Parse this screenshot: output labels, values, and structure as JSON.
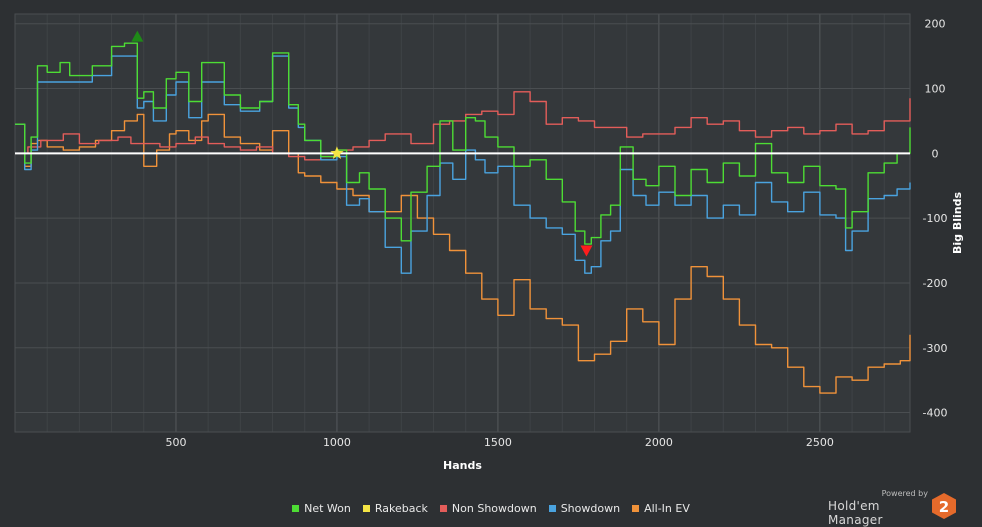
{
  "chart_data": {
    "type": "line",
    "xlabel": "Hands",
    "ylabel": "Big Blinds",
    "xlim": [
      0,
      2780
    ],
    "ylim": [
      -430,
      215
    ],
    "x_ticks": [
      "500",
      "1000",
      "1500",
      "2000",
      "2500"
    ],
    "y_ticks": [
      "200",
      "100",
      "0",
      "-100",
      "-200",
      "-300",
      "-400"
    ],
    "grid": true,
    "legend": "bottom",
    "series": [
      {
        "name": "Net Won",
        "color": "#4ddc34",
        "x": [
          0,
          30,
          50,
          70,
          100,
          140,
          170,
          200,
          240,
          300,
          340,
          380,
          400,
          430,
          470,
          500,
          540,
          580,
          600,
          650,
          700,
          760,
          800,
          850,
          880,
          900,
          950,
          1000,
          1030,
          1070,
          1100,
          1150,
          1200,
          1230,
          1280,
          1320,
          1360,
          1400,
          1430,
          1460,
          1500,
          1550,
          1600,
          1650,
          1700,
          1740,
          1770,
          1790,
          1820,
          1850,
          1880,
          1920,
          1960,
          2000,
          2050,
          2100,
          2150,
          2200,
          2250,
          2300,
          2350,
          2400,
          2450,
          2500,
          2550,
          2580,
          2600,
          2650,
          2700,
          2740,
          2780
        ],
        "y": [
          45,
          -15,
          25,
          135,
          125,
          140,
          120,
          120,
          135,
          165,
          170,
          85,
          95,
          70,
          115,
          125,
          80,
          140,
          140,
          90,
          70,
          80,
          155,
          75,
          45,
          20,
          -5,
          5,
          -45,
          -30,
          -55,
          -100,
          -135,
          -60,
          -20,
          50,
          5,
          55,
          50,
          25,
          10,
          -20,
          -10,
          -40,
          -75,
          -120,
          -140,
          -130,
          -95,
          -80,
          10,
          -40,
          -50,
          -20,
          -65,
          -25,
          -45,
          -15,
          -35,
          15,
          -30,
          -45,
          -20,
          -50,
          -55,
          -115,
          -90,
          -30,
          -15,
          0,
          40
        ]
      },
      {
        "name": "Rakeback",
        "color": "#f4e445",
        "x": [
          0,
          2780
        ],
        "y": [
          0,
          0
        ]
      },
      {
        "name": "Non Showdown",
        "color": "#e35d5a",
        "x": [
          0,
          40,
          80,
          150,
          200,
          260,
          320,
          360,
          400,
          450,
          500,
          560,
          600,
          650,
          700,
          750,
          800,
          850,
          900,
          950,
          1000,
          1050,
          1100,
          1150,
          1200,
          1230,
          1300,
          1350,
          1400,
          1450,
          1500,
          1550,
          1600,
          1650,
          1700,
          1750,
          1800,
          1850,
          1900,
          1950,
          2000,
          2050,
          2100,
          2150,
          2200,
          2250,
          2300,
          2350,
          2400,
          2450,
          2500,
          2550,
          2600,
          2650,
          2700,
          2750,
          2780
        ],
        "y": [
          0,
          10,
          20,
          30,
          15,
          20,
          25,
          15,
          15,
          10,
          15,
          25,
          15,
          10,
          5,
          10,
          0,
          -5,
          -10,
          -5,
          5,
          10,
          20,
          30,
          30,
          15,
          45,
          50,
          60,
          65,
          60,
          95,
          80,
          45,
          55,
          50,
          40,
          40,
          25,
          30,
          30,
          40,
          55,
          45,
          50,
          35,
          25,
          35,
          40,
          30,
          35,
          45,
          30,
          35,
          50,
          50,
          85
        ]
      },
      {
        "name": "Showdown",
        "color": "#4aa3df",
        "x": [
          0,
          30,
          50,
          70,
          100,
          140,
          170,
          200,
          240,
          300,
          340,
          380,
          400,
          430,
          470,
          500,
          540,
          580,
          600,
          650,
          700,
          760,
          800,
          850,
          880,
          900,
          950,
          1000,
          1030,
          1070,
          1100,
          1150,
          1200,
          1230,
          1280,
          1320,
          1360,
          1400,
          1430,
          1460,
          1500,
          1550,
          1600,
          1650,
          1700,
          1740,
          1770,
          1790,
          1820,
          1850,
          1880,
          1920,
          1960,
          2000,
          2050,
          2100,
          2150,
          2200,
          2250,
          2300,
          2350,
          2400,
          2450,
          2500,
          2550,
          2580,
          2600,
          2650,
          2700,
          2740,
          2780
        ],
        "y": [
          45,
          -25,
          5,
          110,
          110,
          110,
          110,
          110,
          120,
          150,
          150,
          70,
          80,
          50,
          90,
          110,
          55,
          110,
          110,
          75,
          65,
          80,
          150,
          70,
          40,
          20,
          -10,
          -5,
          -80,
          -70,
          -90,
          -145,
          -185,
          -120,
          -65,
          -15,
          -40,
          5,
          -10,
          -30,
          -20,
          -80,
          -100,
          -115,
          -125,
          -165,
          -185,
          -175,
          -135,
          -120,
          -25,
          -65,
          -80,
          -60,
          -80,
          -65,
          -100,
          -80,
          -95,
          -45,
          -75,
          -90,
          -60,
          -95,
          -100,
          -150,
          -120,
          -70,
          -65,
          -55,
          -45
        ]
      },
      {
        "name": "All-In EV",
        "color": "#f0923a",
        "x": [
          0,
          30,
          50,
          70,
          100,
          150,
          200,
          250,
          300,
          340,
          380,
          400,
          440,
          480,
          500,
          540,
          580,
          600,
          650,
          700,
          760,
          800,
          850,
          880,
          900,
          950,
          1000,
          1050,
          1100,
          1150,
          1200,
          1250,
          1300,
          1350,
          1400,
          1450,
          1500,
          1550,
          1600,
          1650,
          1700,
          1750,
          1800,
          1850,
          1900,
          1950,
          2000,
          2050,
          2100,
          2150,
          2200,
          2250,
          2300,
          2350,
          2400,
          2450,
          2500,
          2550,
          2600,
          2650,
          2700,
          2750,
          2780
        ],
        "y": [
          0,
          -20,
          15,
          20,
          10,
          5,
          10,
          20,
          35,
          50,
          60,
          -20,
          5,
          30,
          35,
          20,
          50,
          60,
          25,
          15,
          5,
          35,
          0,
          -30,
          -35,
          -45,
          -55,
          -65,
          -90,
          -90,
          -65,
          -100,
          -125,
          -150,
          -185,
          -225,
          -250,
          -195,
          -240,
          -255,
          -265,
          -320,
          -310,
          -290,
          -240,
          -260,
          -295,
          -225,
          -175,
          -190,
          -225,
          -265,
          -295,
          -300,
          -330,
          -360,
          -370,
          -345,
          -350,
          -330,
          -325,
          -320,
          -280
        ]
      }
    ],
    "markers": [
      {
        "name": "peak-marker",
        "shape": "triangle-up",
        "x": 380,
        "y": 180,
        "color": "#1e8a17"
      },
      {
        "name": "trough-marker",
        "shape": "triangle-down",
        "x": 1775,
        "y": -150,
        "color": "#ff1d1d"
      },
      {
        "name": "star-marker",
        "shape": "star",
        "x": 1000,
        "y": 0,
        "color": "#f4e445"
      }
    ]
  },
  "legend": {
    "items": [
      {
        "label": "Net Won",
        "color": "#4ddc34"
      },
      {
        "label": "Rakeback",
        "color": "#f4e445"
      },
      {
        "label": "Non Showdown",
        "color": "#e35d5a"
      },
      {
        "label": "Showdown",
        "color": "#4aa3df"
      },
      {
        "label": "All-In EV",
        "color": "#f0923a"
      }
    ]
  },
  "branding": {
    "powered_by": "Powered by",
    "product": "Hold'em Manager",
    "logo_text": "2",
    "logo_color": "#e56a2b"
  }
}
